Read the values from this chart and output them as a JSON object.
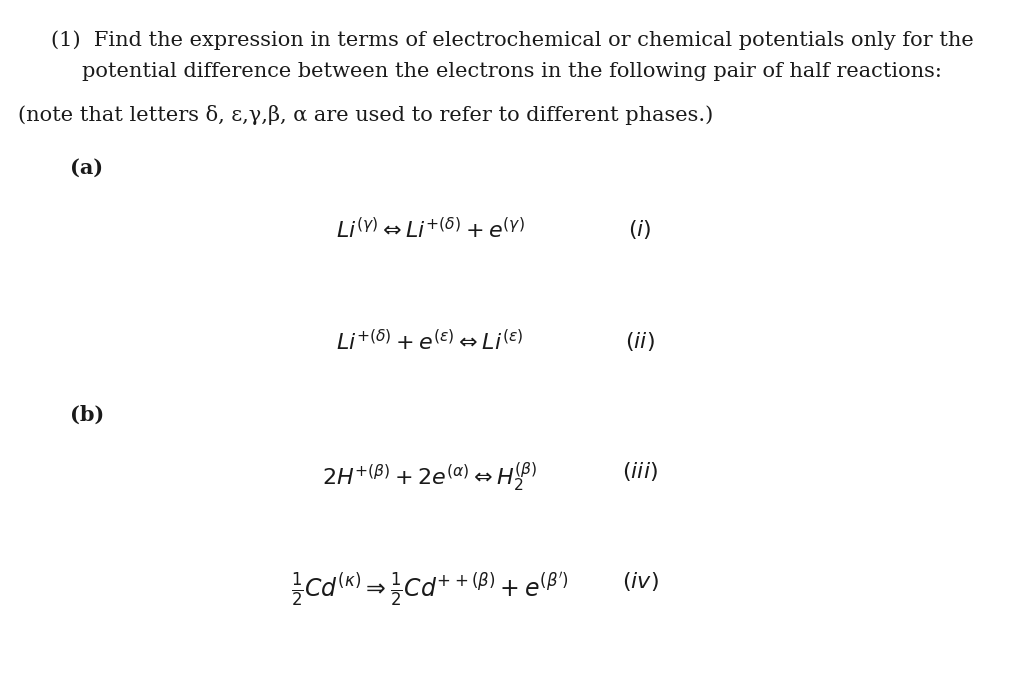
{
  "background_color": "#ffffff",
  "figsize": [
    10.24,
    6.78
  ],
  "dpi": 100,
  "title_line1": "(1)  Find the expression in terms of electrochemical or chemical potentials only for the",
  "title_line2": "potential difference between the electrons in the following pair of half reactions:",
  "note_line": "(note that letters δ, ε,γ,β, α are used to refer to different phases.)",
  "label_a": "(a)",
  "label_b": "(b)",
  "eq1": "$Li^{(\\gamma)} \\Leftrightarrow Li^{+(\\delta)} + e^{(\\gamma)}$",
  "eq1_label": "$(i)$",
  "eq2": "$Li^{+(\\delta)} + e^{(\\varepsilon)} \\Leftrightarrow Li^{(\\varepsilon)}$",
  "eq2_label": "$(ii)$",
  "eq3": "$2H^{+(\\beta)} + 2e^{(\\alpha)} \\Leftrightarrow H_2^{(\\beta)}$",
  "eq3_label": "$(iii)$",
  "eq4": "$\\frac{1}{2}Cd^{(\\kappa)} \\Rightarrow \\frac{1}{2}Cd^{++(\\beta)} + e^{(\\beta')}$",
  "eq4_label": "$(iv)$",
  "text_color": "#1a1a1a",
  "font_size_main": 15,
  "font_size_eq": 16,
  "font_size_label_ab": 15
}
